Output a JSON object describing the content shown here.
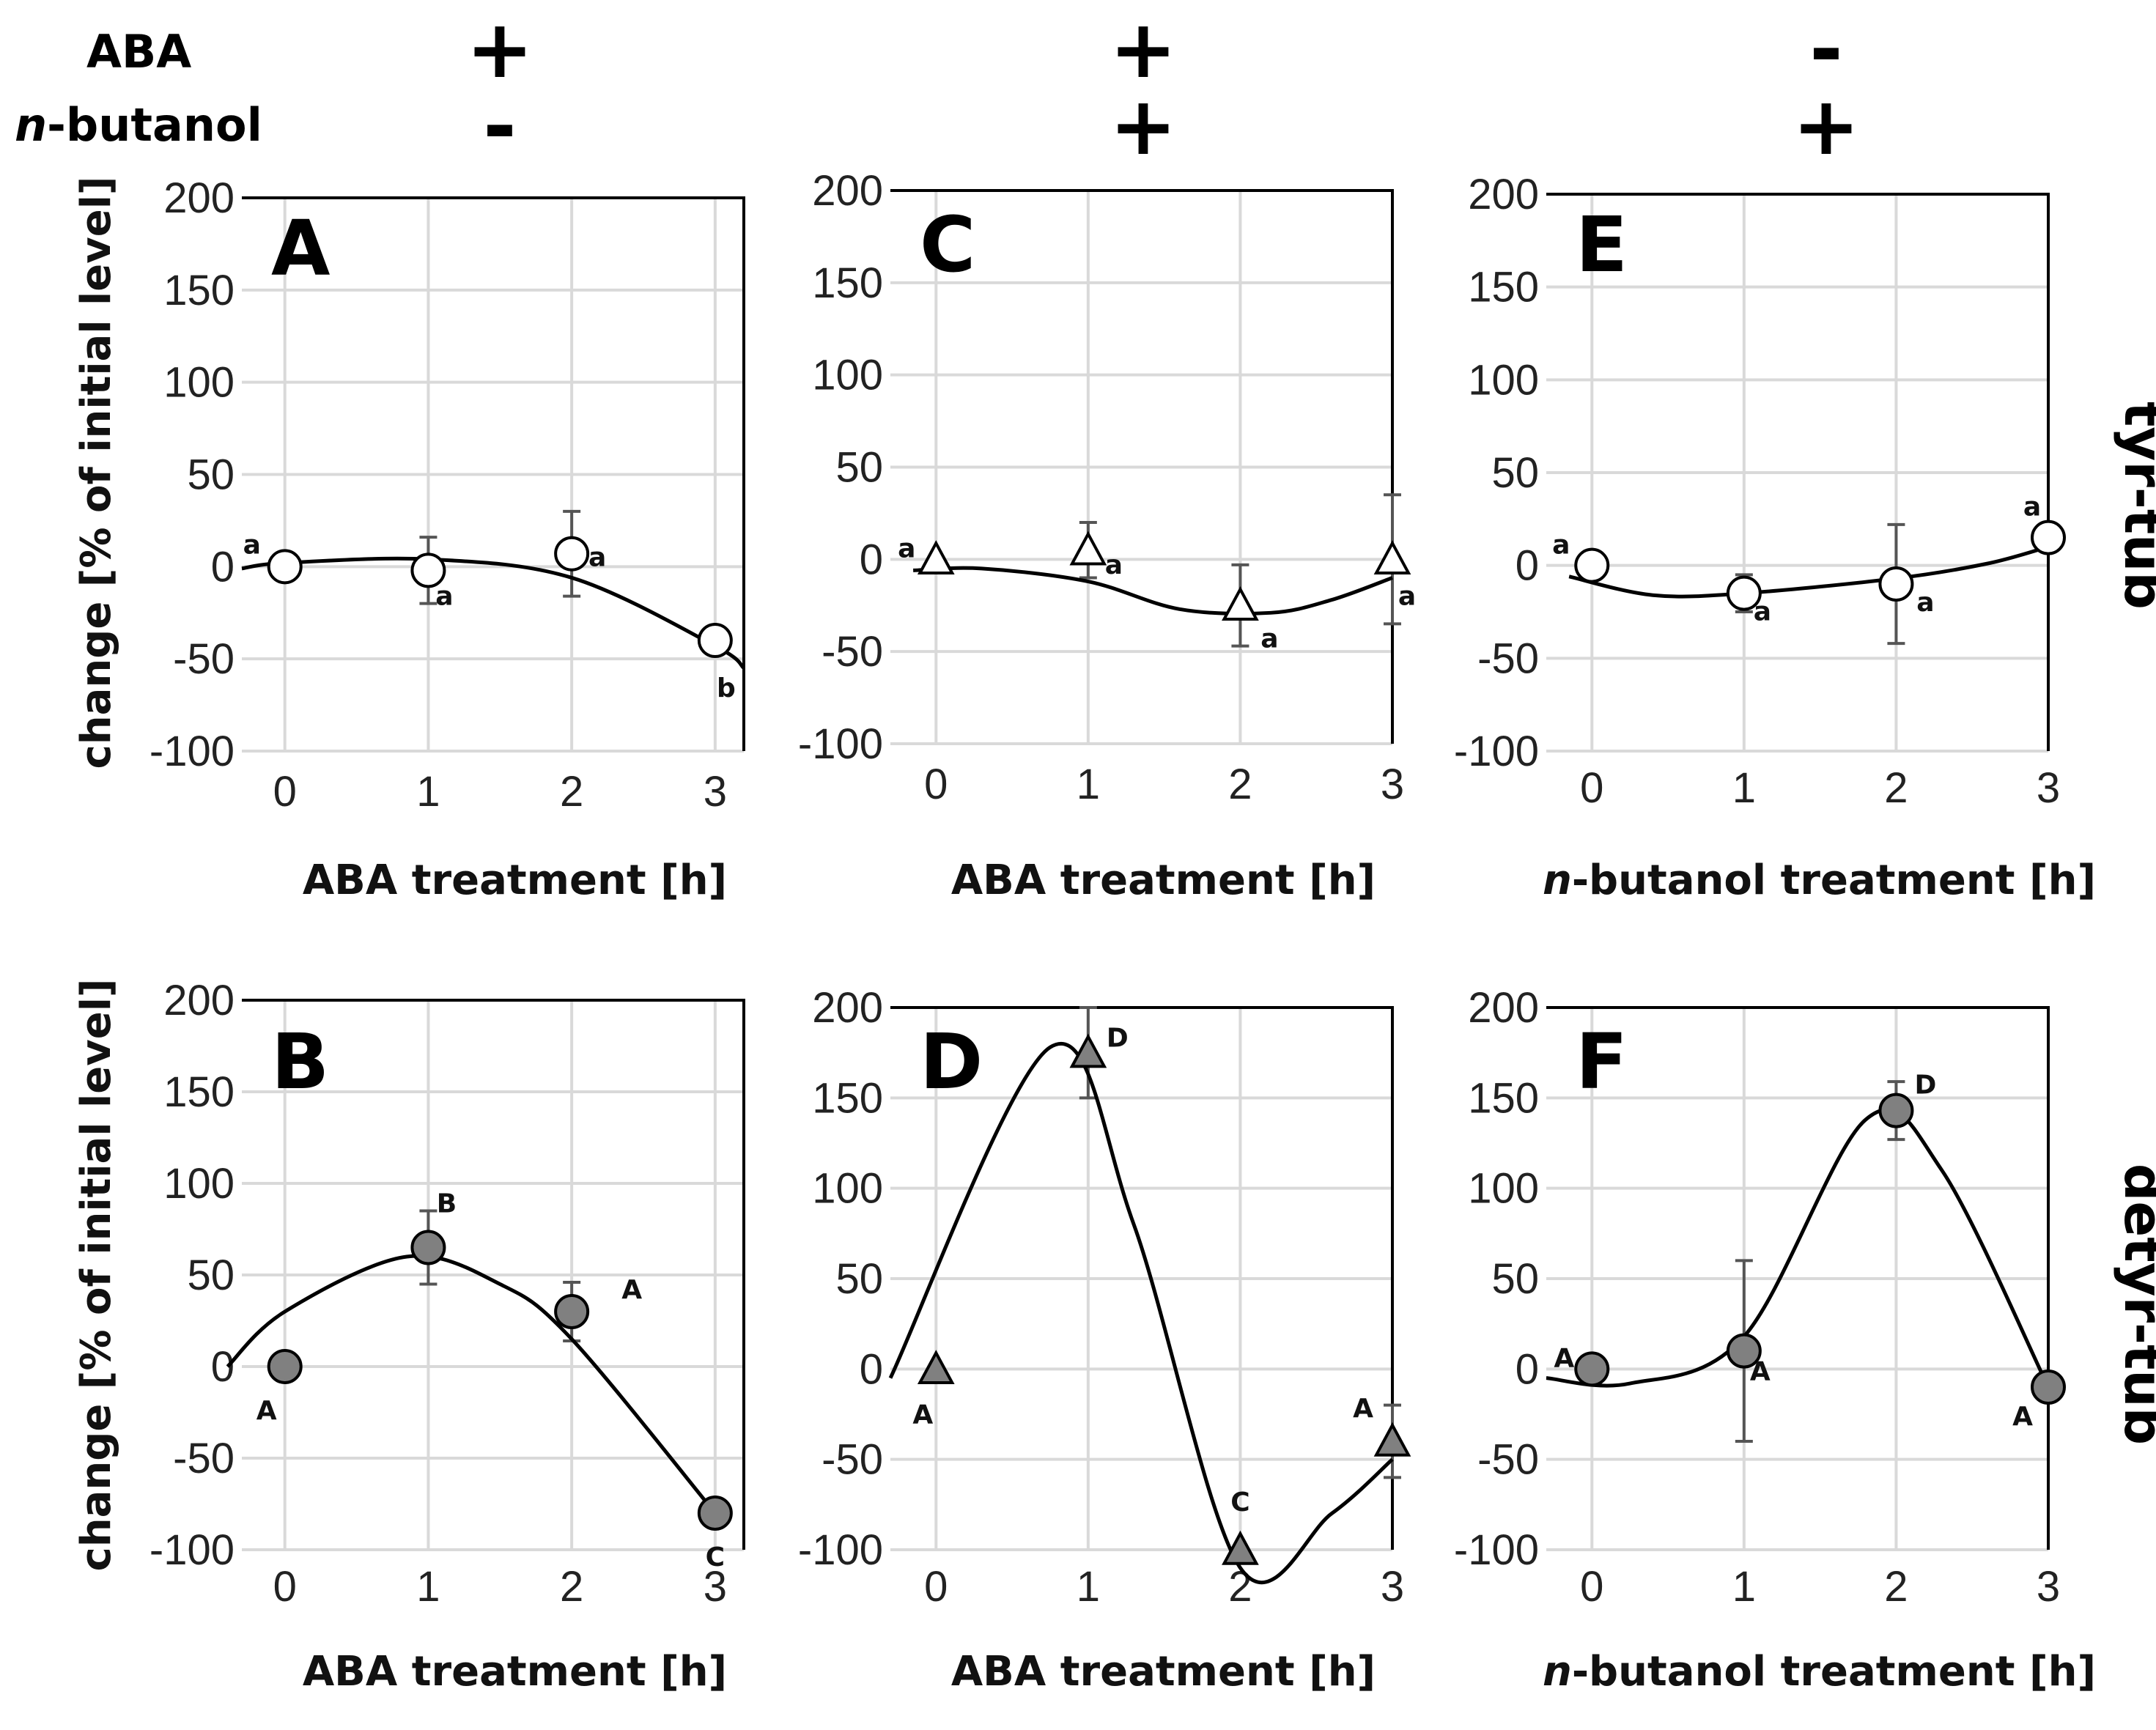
{
  "header": {
    "rows": [
      {
        "label_italic": "",
        "label": "ABA",
        "signs": [
          "+",
          "+",
          "-"
        ]
      },
      {
        "label_italic": "n",
        "label": "-butanol",
        "signs": [
          "-",
          "+",
          "+"
        ]
      }
    ]
  },
  "row_labels": [
    "tyr-tub",
    "detyr-tub"
  ],
  "ylabel": "change [% of initial level]",
  "ytick_labels": [
    "200",
    "150",
    "100",
    "50",
    "0",
    "-50",
    "-100"
  ],
  "xtick_labels": [
    "0",
    "1",
    "2",
    "3"
  ],
  "colors": {
    "open_marker": "#ffffff",
    "filled_marker": "#808080",
    "stroke": "#000000",
    "grid": "#d9d9d9"
  },
  "chart_data": [
    {
      "panel": "A",
      "type": "scatter",
      "marker": "circle",
      "filled": false,
      "xlabel_italic": "",
      "xlabel": "ABA treatment [h]",
      "xlim": [
        -0.3,
        3.2
      ],
      "ylim": [
        -100,
        200
      ],
      "x": [
        0,
        1,
        2,
        3
      ],
      "y": [
        0,
        -2,
        7,
        -40
      ],
      "error": [
        0,
        18,
        23,
        0
      ],
      "sig": [
        "a",
        "a",
        "a",
        "b"
      ],
      "curve": [
        [
          -0.3,
          -1
        ],
        [
          0,
          2
        ],
        [
          1,
          4
        ],
        [
          2,
          -6
        ],
        [
          3,
          -43
        ],
        [
          3.2,
          -55
        ]
      ]
    },
    {
      "panel": "C",
      "type": "scatter",
      "marker": "triangle",
      "filled": false,
      "xlabel_italic": "",
      "xlabel": "ABA treatment [h]",
      "xlim": [
        -0.3,
        3.0
      ],
      "ylim": [
        -100,
        200
      ],
      "x": [
        0,
        1,
        2,
        3
      ],
      "y": [
        0,
        5,
        -25,
        0
      ],
      "error": [
        0,
        15,
        22,
        35
      ],
      "sig": [
        "a",
        "a",
        "a",
        "a"
      ],
      "curve": [
        [
          -0.15,
          -6
        ],
        [
          0.3,
          -5
        ],
        [
          1,
          -12
        ],
        [
          1.6,
          -27
        ],
        [
          2.2,
          -29
        ],
        [
          2.6,
          -22
        ],
        [
          3,
          -10
        ]
      ]
    },
    {
      "panel": "E",
      "type": "scatter",
      "marker": "circle",
      "filled": false,
      "xlabel_italic": "n",
      "xlabel": "-butanol treatment [h]",
      "xlim": [
        -0.3,
        3.0
      ],
      "ylim": [
        -100,
        200
      ],
      "x": [
        0,
        1,
        2,
        3
      ],
      "y": [
        0,
        -15,
        -10,
        15
      ],
      "error": [
        0,
        10,
        32,
        0
      ],
      "sig": [
        "a",
        "a",
        "a",
        "a"
      ],
      "curve": [
        [
          -0.15,
          -6
        ],
        [
          0.4,
          -16
        ],
        [
          1,
          -15
        ],
        [
          2,
          -7
        ],
        [
          2.6,
          1
        ],
        [
          3,
          10
        ]
      ]
    },
    {
      "panel": "B",
      "type": "scatter",
      "marker": "circle",
      "filled": true,
      "xlabel_italic": "",
      "xlabel": "ABA treatment [h]",
      "xlim": [
        -0.3,
        3.2
      ],
      "ylim": [
        -100,
        200
      ],
      "x": [
        0,
        1,
        2,
        3
      ],
      "y": [
        0,
        65,
        30,
        -80
      ],
      "error": [
        0,
        20,
        16,
        0
      ],
      "sig": [
        "A",
        "B",
        "A",
        "C"
      ],
      "curve": [
        [
          -0.4,
          0
        ],
        [
          0,
          30
        ],
        [
          0.85,
          60
        ],
        [
          1.5,
          45
        ],
        [
          2,
          15
        ],
        [
          3,
          -80
        ]
      ]
    },
    {
      "panel": "D",
      "type": "scatter",
      "marker": "triangle",
      "filled": true,
      "xlabel_italic": "",
      "xlabel": "ABA treatment [h]",
      "xlim": [
        -0.3,
        3.0
      ],
      "ylim": [
        -100,
        200
      ],
      "x": [
        0,
        1,
        2,
        3
      ],
      "y": [
        0,
        175,
        -100,
        -40
      ],
      "error": [
        0,
        25,
        0,
        20
      ],
      "sig": [
        "A",
        "D",
        "C",
        "A"
      ],
      "curve": [
        [
          -0.3,
          -5
        ],
        [
          0.75,
          178
        ],
        [
          1.3,
          80
        ],
        [
          2,
          -110
        ],
        [
          2.6,
          -80
        ],
        [
          3,
          -50
        ]
      ]
    },
    {
      "panel": "F",
      "type": "scatter",
      "marker": "circle",
      "filled": true,
      "xlabel_italic": "n",
      "xlabel": "-butanol treatment [h]",
      "xlim": [
        -0.3,
        3.0
      ],
      "ylim": [
        -100,
        200
      ],
      "x": [
        0,
        1,
        2,
        3
      ],
      "y": [
        0,
        10,
        143,
        -10
      ],
      "error": [
        0,
        50,
        16,
        0
      ],
      "sig": [
        "A",
        "A",
        "D",
        "A"
      ],
      "curve": [
        [
          -0.3,
          -5
        ],
        [
          0.25,
          -8
        ],
        [
          1,
          18
        ],
        [
          1.8,
          138
        ],
        [
          2.3,
          110
        ],
        [
          3,
          -10
        ]
      ]
    }
  ]
}
